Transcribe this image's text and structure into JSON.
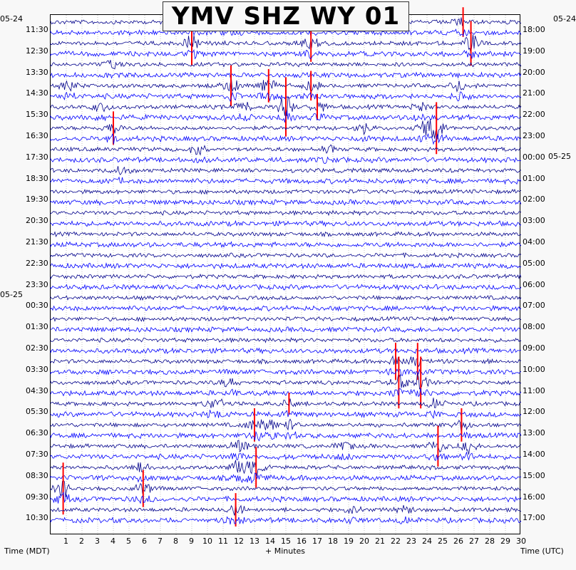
{
  "title": "YMV SHZ WY 01",
  "chart_data": {
    "type": "heliplot",
    "title": "YMV SHZ WY 01",
    "date_labels_left": [
      "05-24",
      "05-25"
    ],
    "date_labels_right": [
      "05-24",
      "05-25"
    ],
    "left_times": [
      "11:30",
      "12:30",
      "13:30",
      "14:30",
      "15:30",
      "16:30",
      "17:30",
      "18:30",
      "19:30",
      "20:30",
      "21:30",
      "22:30",
      "23:30",
      "00:30",
      "01:30",
      "02:30",
      "03:30",
      "04:30",
      "05:30",
      "06:30",
      "07:30",
      "08:30",
      "09:30",
      "10:30"
    ],
    "right_times": [
      "18:00",
      "19:00",
      "20:00",
      "21:00",
      "22:00",
      "23:00",
      "00:00",
      "01:00",
      "02:00",
      "03:00",
      "04:00",
      "05:00",
      "06:00",
      "07:00",
      "08:00",
      "09:00",
      "10:00",
      "11:00",
      "12:00",
      "13:00",
      "14:00",
      "15:00",
      "16:00",
      "17:00"
    ],
    "x_ticks": [
      "1",
      "2",
      "3",
      "4",
      "5",
      "6",
      "7",
      "8",
      "9",
      "10",
      "11",
      "12",
      "13",
      "14",
      "15",
      "16",
      "17",
      "18",
      "19",
      "20",
      "21",
      "22",
      "23",
      "24",
      "25",
      "26",
      "27",
      "28",
      "29",
      "30"
    ],
    "xlim": [
      0,
      30
    ],
    "xlabel": "+ Minutes",
    "left_axis_label": "Time (MDT)",
    "right_axis_label": "Time (UTC)",
    "trace_colors": [
      "#00008b",
      "#0000ff"
    ],
    "clip_color": "#ff0000",
    "events": [
      {
        "line": 0,
        "minute": 11.2,
        "amp": 6,
        "clip": false
      },
      {
        "line": 0,
        "minute": 26.3,
        "amp": 8,
        "clip": true
      },
      {
        "line": 1,
        "minute": 9.0,
        "amp": 12,
        "clip": true
      },
      {
        "line": 1,
        "minute": 16.6,
        "amp": 10,
        "clip": true
      },
      {
        "line": 1,
        "minute": 26.8,
        "amp": 12,
        "clip": true
      },
      {
        "line": 2,
        "minute": 3.8,
        "amp": 5,
        "clip": false
      },
      {
        "line": 3,
        "minute": 1.1,
        "amp": 9,
        "clip": false
      },
      {
        "line": 3,
        "minute": 11.5,
        "amp": 11,
        "clip": true
      },
      {
        "line": 3,
        "minute": 13.9,
        "amp": 9,
        "clip": true
      },
      {
        "line": 3,
        "minute": 16.6,
        "amp": 8,
        "clip": true
      },
      {
        "line": 3,
        "minute": 26.1,
        "amp": 8,
        "clip": false
      },
      {
        "line": 4,
        "minute": 3.2,
        "amp": 6,
        "clip": false
      },
      {
        "line": 4,
        "minute": 12.3,
        "amp": 7,
        "clip": false
      },
      {
        "line": 4,
        "minute": 15.0,
        "amp": 16,
        "clip": true
      },
      {
        "line": 4,
        "minute": 17.0,
        "amp": 7,
        "clip": true
      },
      {
        "line": 4,
        "minute": 23.5,
        "amp": 6,
        "clip": false
      },
      {
        "line": 5,
        "minute": 4.0,
        "amp": 9,
        "clip": true
      },
      {
        "line": 5,
        "minute": 20.0,
        "amp": 8,
        "clip": false
      },
      {
        "line": 5,
        "minute": 23.8,
        "amp": 9,
        "clip": false
      },
      {
        "line": 5,
        "minute": 24.6,
        "amp": 14,
        "clip": true
      },
      {
        "line": 6,
        "minute": 9.4,
        "amp": 8,
        "clip": false
      },
      {
        "line": 6,
        "minute": 17.8,
        "amp": 5,
        "clip": false
      },
      {
        "line": 7,
        "minute": 4.5,
        "amp": 5,
        "clip": false
      },
      {
        "line": 16,
        "minute": 22.0,
        "amp": 10,
        "clip": true
      },
      {
        "line": 16,
        "minute": 23.4,
        "amp": 10,
        "clip": true
      },
      {
        "line": 17,
        "minute": 11.4,
        "amp": 7,
        "clip": false
      },
      {
        "line": 17,
        "minute": 22.2,
        "amp": 14,
        "clip": true
      },
      {
        "line": 17,
        "minute": 23.6,
        "amp": 14,
        "clip": true
      },
      {
        "line": 18,
        "minute": 10.5,
        "amp": 10,
        "clip": false
      },
      {
        "line": 18,
        "minute": 15.2,
        "amp": 6,
        "clip": true
      },
      {
        "line": 18,
        "minute": 24.5,
        "amp": 7,
        "clip": false
      },
      {
        "line": 19,
        "minute": 13.0,
        "amp": 9,
        "clip": true
      },
      {
        "line": 19,
        "minute": 13.9,
        "amp": 8,
        "clip": false
      },
      {
        "line": 19,
        "minute": 15.3,
        "amp": 9,
        "clip": false
      },
      {
        "line": 19,
        "minute": 26.2,
        "amp": 9,
        "clip": true
      },
      {
        "line": 20,
        "minute": 12.0,
        "amp": 9,
        "clip": false
      },
      {
        "line": 20,
        "minute": 18.7,
        "amp": 7,
        "clip": false
      },
      {
        "line": 20,
        "minute": 24.7,
        "amp": 11,
        "clip": true
      },
      {
        "line": 20,
        "minute": 26.6,
        "amp": 10,
        "clip": false
      },
      {
        "line": 21,
        "minute": 12.0,
        "amp": 12,
        "clip": false
      },
      {
        "line": 21,
        "minute": 13.1,
        "amp": 11,
        "clip": true
      },
      {
        "line": 21,
        "minute": 5.8,
        "amp": 6,
        "clip": false
      },
      {
        "line": 22,
        "minute": 0.8,
        "amp": 14,
        "clip": true
      },
      {
        "line": 22,
        "minute": 5.9,
        "amp": 10,
        "clip": true
      },
      {
        "line": 23,
        "minute": 11.8,
        "amp": 9,
        "clip": true
      },
      {
        "line": 23,
        "minute": 19.3,
        "amp": 5,
        "clip": false
      },
      {
        "line": 23,
        "minute": 22.5,
        "amp": 6,
        "clip": false
      }
    ]
  }
}
